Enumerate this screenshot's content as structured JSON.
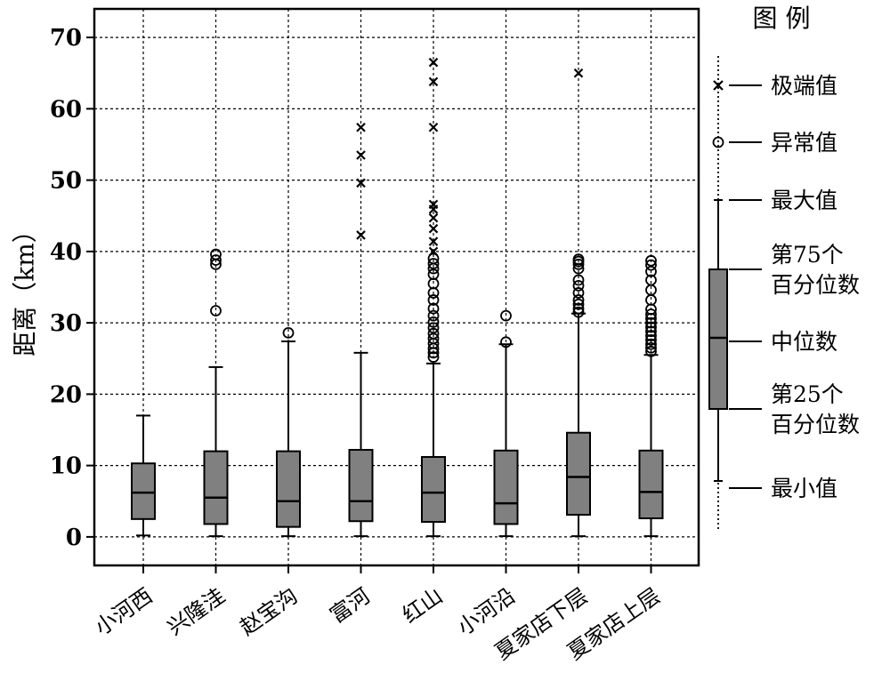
{
  "chart_data": {
    "type": "box",
    "ylabel": "距离（km）",
    "ylim": [
      -4,
      74
    ],
    "yticks": [
      0,
      10,
      20,
      30,
      40,
      50,
      60,
      70
    ],
    "grid": true,
    "categories": [
      "小河西",
      "兴隆洼",
      "赵宝沟",
      "富河",
      "红山",
      "小河沿",
      "夏家店下层",
      "夏家店上层"
    ],
    "boxes": [
      {
        "min": 0.2,
        "q1": 2.5,
        "median": 6.2,
        "q3": 10.3,
        "max": 17.0,
        "outliers": [],
        "extremes": []
      },
      {
        "min": 0.1,
        "q1": 1.8,
        "median": 5.5,
        "q3": 12.0,
        "max": 23.8,
        "outliers": [
          31.7,
          38.2,
          38.8,
          39.6
        ],
        "extremes": []
      },
      {
        "min": 0.1,
        "q1": 1.4,
        "median": 5.0,
        "q3": 12.0,
        "max": 27.4,
        "outliers": [
          28.6
        ],
        "extremes": []
      },
      {
        "min": 0.1,
        "q1": 2.2,
        "median": 5.0,
        "q3": 12.2,
        "max": 25.8,
        "outliers": [],
        "extremes": [
          42.3,
          49.6,
          53.5,
          57.4
        ]
      },
      {
        "min": 0.1,
        "q1": 2.1,
        "median": 6.2,
        "q3": 11.2,
        "max": 24.3,
        "outliers": [
          25.2,
          25.8,
          26.4,
          27.1,
          27.8,
          28.5,
          29.3,
          30.1,
          31.0,
          32.0,
          33.2,
          34.2,
          35.5,
          36.8,
          37.6,
          38.3,
          39.0
        ],
        "extremes": [
          40.0,
          41.4,
          43.2,
          44.7,
          45.9,
          46.6,
          57.4,
          63.8,
          66.5
        ]
      },
      {
        "min": 0.1,
        "q1": 1.8,
        "median": 4.7,
        "q3": 12.1,
        "max": 27.0,
        "outliers": [
          27.3,
          31.0
        ],
        "extremes": []
      },
      {
        "min": 0.1,
        "q1": 3.1,
        "median": 8.4,
        "q3": 14.6,
        "max": 31.3,
        "outliers": [
          31.5,
          32.0,
          32.6,
          33.2,
          34.2,
          35.2,
          36.0,
          37.6,
          38.2,
          38.6,
          38.9
        ],
        "extremes": [
          65.0
        ]
      },
      {
        "min": 0.1,
        "q1": 2.6,
        "median": 6.3,
        "q3": 12.1,
        "max": 25.5,
        "outliers": [
          26.0,
          26.5,
          27.0,
          27.6,
          28.2,
          28.8,
          29.4,
          30.0,
          30.6,
          31.2,
          31.9,
          33.2,
          34.6,
          36.0,
          37.2,
          38.1,
          38.7
        ],
        "extremes": []
      }
    ],
    "legend": {
      "title": "图 例",
      "items": {
        "extreme": "极端值",
        "outlier": "异常值",
        "max": "最大值",
        "q3": [
          "第75个",
          "百分位数"
        ],
        "median": "中位数",
        "q1": [
          "第25个",
          "百分位数"
        ],
        "min": "最小值"
      }
    },
    "colors": {
      "box_fill": "#808080",
      "line": "#000000",
      "grid": "#000000"
    }
  }
}
